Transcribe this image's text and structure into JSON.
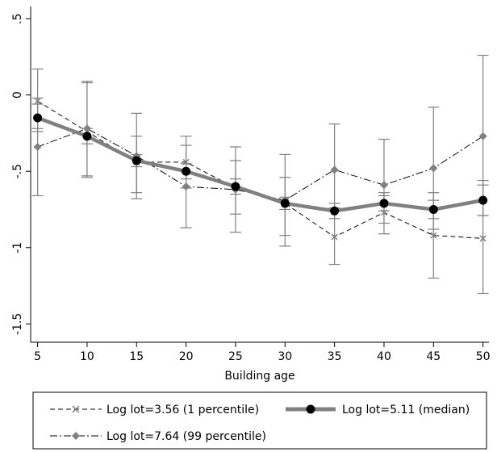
{
  "chart_data": {
    "type": "line",
    "xlabel": "Building age",
    "ylabel": "",
    "x": [
      5,
      10,
      15,
      20,
      25,
      30,
      35,
      40,
      45,
      50
    ],
    "x_tick_labels": [
      "5",
      "10",
      "15",
      "20",
      "25",
      "30",
      "35",
      "40",
      "45",
      "50"
    ],
    "y_ticks": [
      0.5,
      0,
      -0.5,
      -1,
      -1.5
    ],
    "y_tick_labels": [
      ".5",
      "0",
      "-.5",
      "-1",
      "-1.5"
    ],
    "xlim": [
      4.3,
      50.6
    ],
    "ylim": [
      -1.62,
      0.58
    ],
    "grid": false,
    "legend_position": "bottom",
    "series": [
      {
        "name": "Log lot=3.56 (1 percentile)",
        "color": "#000000",
        "line_style": "dashed",
        "marker": "x",
        "values": [
          -0.04,
          -0.24,
          -0.44,
          -0.44,
          -0.61,
          -0.71,
          -0.93,
          -0.77,
          -0.92,
          -0.94
        ],
        "ci_low": [
          -0.22,
          -0.53,
          -0.64,
          -0.61,
          -0.78,
          -0.92,
          -1.11,
          -0.91,
          -1.2,
          -1.3
        ],
        "ci_high": [
          0.17,
          0.08,
          -0.27,
          -0.27,
          -0.43,
          -0.54,
          -0.74,
          -0.64,
          -0.64,
          -0.56
        ]
      },
      {
        "name": "Log lot=5.11 (median)",
        "color": "#808080",
        "line_style": "solid",
        "marker": "circle",
        "values": [
          -0.15,
          -0.27,
          -0.43,
          -0.5,
          -0.6,
          -0.71,
          -0.76,
          -0.71,
          -0.75,
          -0.69
        ],
        "ci_low": [
          -0.24,
          -0.32,
          -0.47,
          -0.55,
          -0.65,
          -0.75,
          -0.81,
          -0.76,
          -0.81,
          -0.79
        ],
        "ci_high": [
          -0.06,
          -0.22,
          -0.39,
          -0.45,
          -0.55,
          -0.67,
          -0.71,
          -0.66,
          -0.69,
          -0.59
        ]
      },
      {
        "name": "Log lot=7.64 (99 percentile)",
        "color": "#888888",
        "line_style": "dashdot",
        "marker": "diamond",
        "values": [
          -0.34,
          -0.22,
          -0.4,
          -0.6,
          -0.62,
          -0.69,
          -0.49,
          -0.59,
          -0.48,
          -0.27
        ],
        "ci_low": [
          -0.66,
          -0.54,
          -0.68,
          -0.87,
          -0.9,
          -0.99,
          -0.76,
          -0.84,
          -0.88,
          -0.79
        ],
        "ci_high": [
          -0.02,
          0.09,
          -0.12,
          -0.33,
          -0.34,
          -0.39,
          -0.19,
          -0.29,
          -0.08,
          0.26
        ]
      }
    ]
  }
}
